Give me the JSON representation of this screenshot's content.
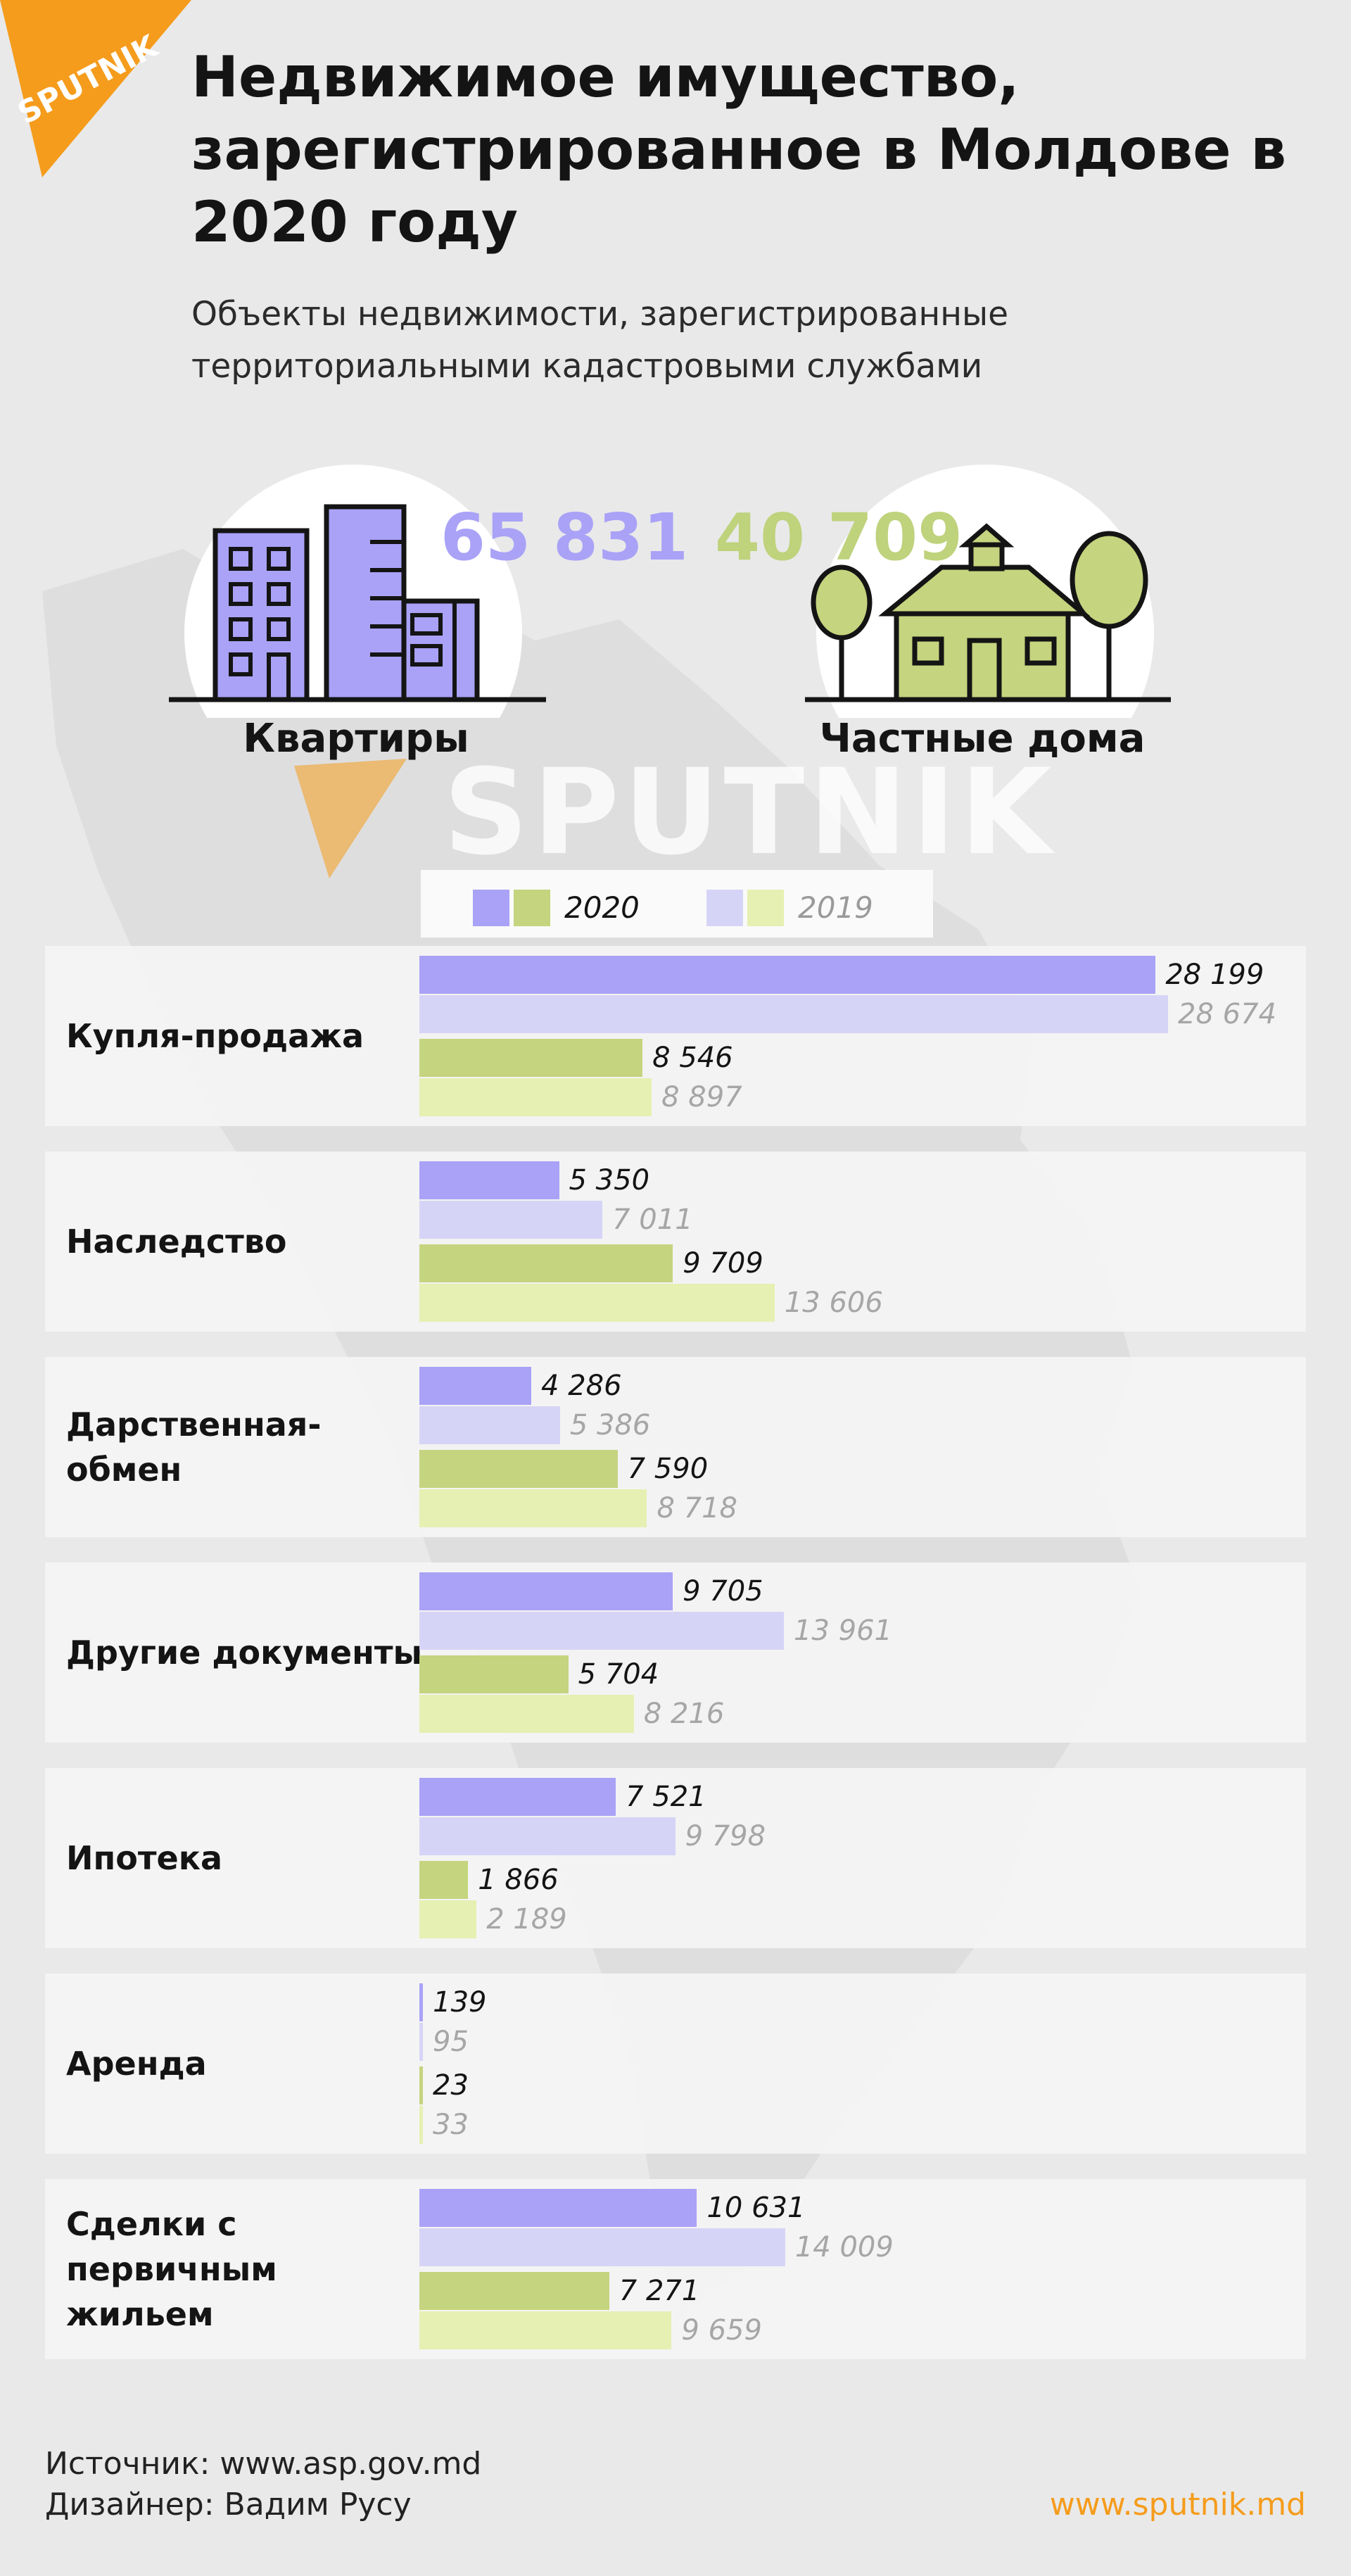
{
  "brand": {
    "logo_text": "SPUTNIK",
    "watermark": "SPUTNIK",
    "accent": "#f59c1c"
  },
  "title": "Недвижимое имущество, зарегистрированное в Молдове в 2020 году",
  "subtitle": "Объекты недвижимости, зарегистрированные территориальными кадастровыми службами",
  "hero": {
    "apartments": {
      "value": "65 831",
      "label": "Квартиры",
      "color": "#a9a2f7",
      "icon": "apartment-building-icon"
    },
    "houses": {
      "value": "40 709",
      "label": "Частные дома",
      "color": "#bfd27c",
      "icon": "private-house-icon"
    }
  },
  "legend": {
    "year_current": "2020",
    "year_previous": "2019"
  },
  "colors": {
    "apt_2020": "#a9a2f7",
    "apt_2019": "#d6d4f6",
    "house_2020": "#c5d47e",
    "house_2019": "#e5f0b2"
  },
  "chart_data": {
    "type": "bar",
    "orientation": "horizontal",
    "categories": [
      "Купля-продажа",
      "Наследство",
      "Дарственная-\nобмен",
      "Другие документы",
      "Ипотека",
      "Аренда",
      "Сделки с\nпервичным\nжильем"
    ],
    "series": [
      {
        "name": "Квартиры 2020",
        "values": [
          28199,
          5350,
          4286,
          9705,
          7521,
          139,
          10631
        ],
        "labels": [
          "28 199",
          "5 350",
          "4 286",
          "9 705",
          "7 521",
          "139",
          "10 631"
        ]
      },
      {
        "name": "Квартиры 2019",
        "values": [
          28674,
          7011,
          5386,
          13961,
          9798,
          95,
          14009
        ],
        "labels": [
          "28 674",
          "7 011",
          "5 386",
          "13 961",
          "9 798",
          "95",
          "14 009"
        ]
      },
      {
        "name": "Частные дома 2020",
        "values": [
          8546,
          9709,
          7590,
          5704,
          1866,
          23,
          7271
        ],
        "labels": [
          "8 546",
          "9 709",
          "7 590",
          "5 704",
          "1 866",
          "23",
          "7 271"
        ]
      },
      {
        "name": "Частные дома 2019",
        "values": [
          8897,
          13606,
          8718,
          8216,
          2189,
          33,
          9659
        ],
        "labels": [
          "8 897",
          "13 606",
          "8 718",
          "8 216",
          "2 189",
          "33",
          "9 659"
        ]
      }
    ],
    "xlim": [
      0,
      28674
    ],
    "grid": false
  },
  "footer": {
    "source": "Источник: www.asp.gov.md",
    "designer": "Дизайнер: Вадим Русу",
    "site": "www.sputnik.md"
  }
}
